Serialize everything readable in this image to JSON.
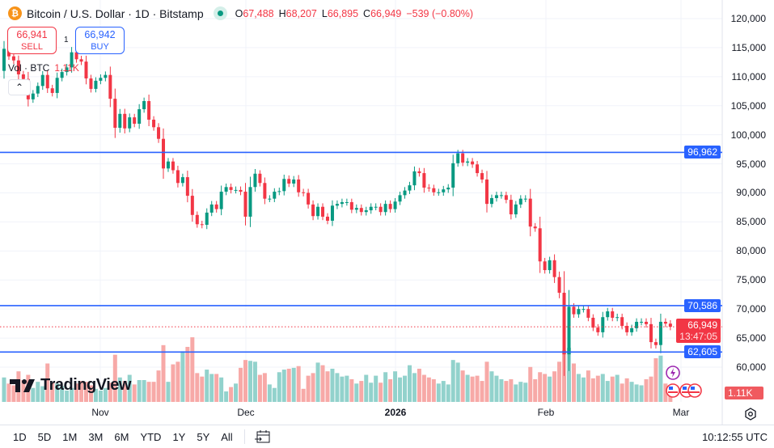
{
  "header": {
    "symbol_title": "Bitcoin / U.S. Dollar · 1D · Bitstamp",
    "icon": "bitcoin-icon",
    "ohlc": {
      "o_label": "O",
      "o": "67,488",
      "h_label": "H",
      "h": "68,207",
      "l_label": "L",
      "l": "66,895",
      "c_label": "C",
      "c": "66,949",
      "change": "−539 (−0.80%)"
    }
  },
  "trade": {
    "sell_price": "66,941",
    "sell_label": "SELL",
    "buy_price": "66,942",
    "buy_label": "BUY",
    "spread": "1"
  },
  "volume_legend": {
    "label": "Vol · BTC",
    "value": "1.11K"
  },
  "price_axis": {
    "labels": [
      "120,000",
      "115,000",
      "110,000",
      "105,000",
      "100,000",
      "95,000",
      "90,000",
      "85,000",
      "80,000",
      "75,000",
      "70,000",
      "65,000",
      "60,000"
    ],
    "current_price": "66,949",
    "countdown": "13:47:05",
    "volume_tag": "1.11K"
  },
  "horizontal_lines": [
    {
      "price": 96962,
      "label": "96,962"
    },
    {
      "price": 70586,
      "label": "70,586"
    },
    {
      "price": 62605,
      "label": "62,605"
    }
  ],
  "time_axis": {
    "labels": [
      "Nov",
      "Dec",
      "2026",
      "Feb",
      "Mar"
    ]
  },
  "colors": {
    "up": "#089981",
    "down": "#f23645",
    "up_vol": "#92d2cc",
    "down_vol": "#f7a9a7",
    "hline": "#2962ff"
  },
  "chart_data": {
    "type": "candlestick",
    "ylim": [
      55000,
      122000
    ],
    "first_open": 111000,
    "close": [
      114800,
      113500,
      112800,
      110400,
      109600,
      106100,
      107100,
      108400,
      110300,
      108000,
      107200,
      109800,
      110800,
      111600,
      114200,
      113000,
      112600,
      109700,
      107900,
      109300,
      109800,
      110300,
      106200,
      101200,
      103600,
      101100,
      103000,
      101900,
      104400,
      105800,
      102600,
      101300,
      99300,
      94200,
      95400,
      93900,
      91700,
      92700,
      89500,
      86200,
      84600,
      84500,
      86600,
      88000,
      87200,
      90200,
      91000,
      90500,
      90500,
      90200,
      85900,
      91000,
      93300,
      91700,
      89000,
      89000,
      90200,
      90300,
      92400,
      91600,
      92300,
      90100,
      90000,
      88000,
      86000,
      87600,
      85900,
      85200,
      87800,
      88100,
      88400,
      88400,
      87100,
      87400,
      86700,
      87000,
      87600,
      87600,
      86700,
      88100,
      87200,
      88500,
      89600,
      90400,
      91300,
      93700,
      93400,
      90900,
      90800,
      90100,
      90100,
      90600,
      90900,
      95100,
      96800,
      95200,
      95400,
      94900,
      93400,
      92300,
      88100,
      89100,
      89600,
      89600,
      88800,
      86300,
      88000,
      89000,
      89000,
      84200,
      83900,
      78200,
      76700,
      78400,
      75500,
      72800,
      62200,
      70400,
      69100,
      70000,
      70000,
      68500,
      66800,
      66000,
      68600,
      69600,
      68500,
      68600,
      67100,
      66000,
      66700,
      67800,
      67800,
      67400,
      64300,
      63800,
      67800,
      67488,
      66949
    ],
    "volume_k": [
      2.8,
      2.1,
      1.9,
      3.5,
      2.5,
      3.1,
      1.6,
      2.3,
      1.8,
      4.4,
      2.2,
      2.1,
      1.8,
      1.3,
      1.6,
      2.1,
      2.4,
      2.3,
      1.9,
      1.5,
      1.3,
      1.6,
      2.2,
      5.4,
      2.8,
      2.4,
      3.1,
      2.0,
      2.5,
      2.5,
      2.3,
      2.3,
      3.6,
      6.5,
      2.3,
      4.3,
      4.6,
      5.8,
      6.3,
      7.4,
      3.3,
      2.9,
      3.7,
      3.2,
      3.2,
      2.8,
      1.2,
      1.7,
      2.1,
      3.9,
      4.8,
      4.7,
      4.6,
      3.1,
      3.3,
      2.0,
      1.6,
      3.4,
      3.7,
      3.8,
      3.9,
      4.1,
      1.5,
      3.0,
      3.3,
      4.5,
      4.2,
      3.5,
      3.8,
      3.3,
      2.9,
      3.0,
      2.6,
      2.1,
      2.4,
      3.1,
      2.2,
      3.0,
      2.2,
      3.4,
      2.6,
      3.5,
      2.8,
      3.0,
      4.2,
      3.3,
      3.8,
      3.1,
      2.8,
      2.6,
      2.1,
      2.4,
      2.0,
      4.8,
      4.5,
      3.6,
      3.1,
      2.9,
      3.0,
      2.4,
      4.6,
      3.5,
      3.0,
      2.6,
      2.4,
      2.6,
      2.0,
      2.3,
      2.2,
      4.0,
      2.6,
      3.4,
      3.2,
      2.9,
      3.5,
      4.6,
      5.9,
      6.2,
      4.4,
      3.2,
      2.8,
      3.6,
      2.7,
      3.0,
      3.2,
      2.4,
      2.9,
      3.1,
      2.1,
      2.7,
      2.3,
      2.0,
      1.9,
      2.6,
      2.9,
      5.0,
      5.3,
      2.1,
      1.11
    ]
  },
  "branding": {
    "logo": "TradingView"
  },
  "bottom_bar": {
    "ranges": [
      "1D",
      "5D",
      "1M",
      "3M",
      "6M",
      "YTD",
      "1Y",
      "5Y",
      "All"
    ],
    "clock": "10:12:55 UTC"
  }
}
